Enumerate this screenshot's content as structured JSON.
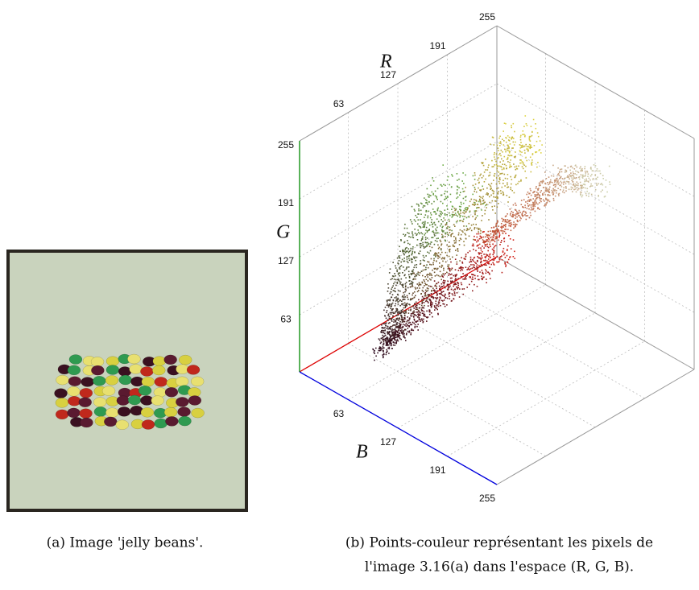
{
  "figure": {
    "panels": [
      {
        "caption": "(a) Image 'jelly beans'."
      },
      {
        "caption_lines": [
          "(b) Points-couleur représentant les pixels de",
          "l'image 3.16(a) dans l'espace (R, G, B)."
        ],
        "axes": [
          {
            "label": "R",
            "lim": [
              0,
              255
            ],
            "ticks": [
              63,
              127,
              191,
              255
            ]
          },
          {
            "label": "G",
            "lim": [
              0,
              255
            ],
            "ticks": [
              63,
              127,
              191,
              255
            ]
          },
          {
            "label": "B",
            "lim": [
              0,
              255
            ],
            "ticks": [
              63,
              127,
              191,
              255
            ]
          }
        ]
      }
    ]
  }
}
